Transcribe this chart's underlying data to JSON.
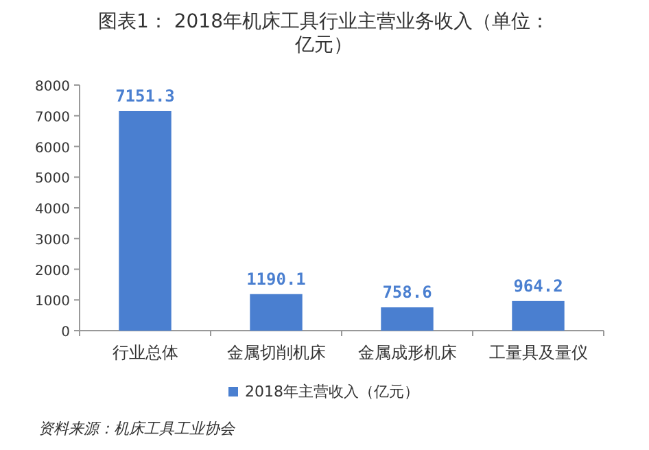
{
  "chart_data": {
    "type": "bar",
    "title": "图表1： 2018年机床工具行业主营业务收入（单位：亿元）",
    "categories": [
      "行业总体",
      "金属切削机床",
      "金属成形机床",
      "工量具及量仪"
    ],
    "series": [
      {
        "name": "2018年主营收入（亿元）",
        "color": "#4a7fd0",
        "values": [
          7151.3,
          1190.1,
          758.6,
          964.2
        ]
      }
    ],
    "ylim": [
      0,
      8000
    ],
    "yticks": [
      0,
      1000,
      2000,
      3000,
      4000,
      5000,
      6000,
      7000,
      8000
    ],
    "data_labels": true,
    "legend": "bottom",
    "annotations": [
      "资料来源：机床工具工业协会"
    ]
  }
}
